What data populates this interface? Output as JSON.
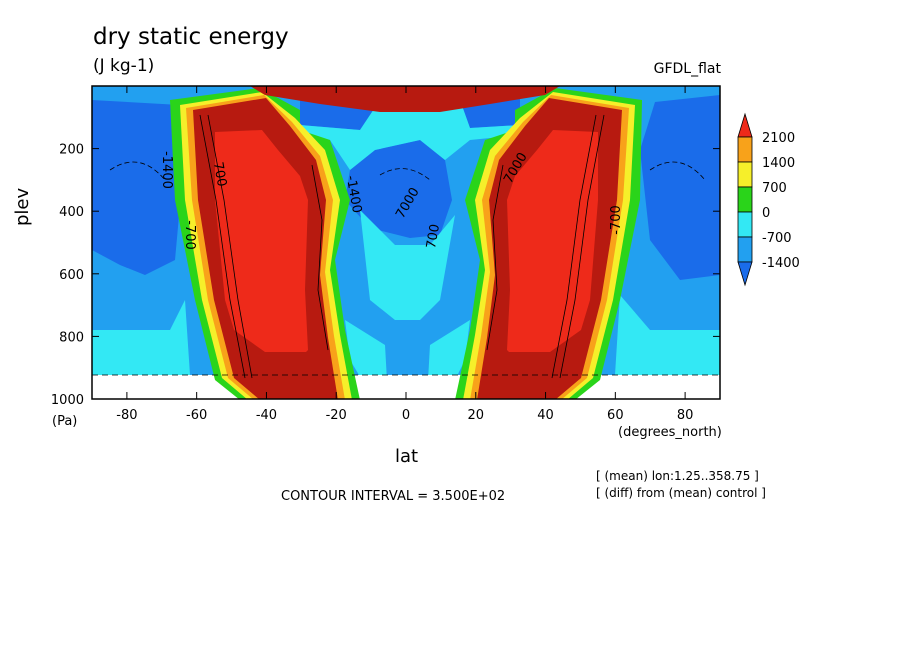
{
  "figure": {
    "title": "dry static energy",
    "units": "(J kg-1)",
    "dataset": "GFDL_flat",
    "meta_lines": [
      "[ (mean) lon:1.25..358.75 ]",
      "[ (diff) from (mean) control ]"
    ],
    "contour_interval": "CONTOUR INTERVAL = 3.500E+02"
  },
  "chart_data": {
    "type": "heatmap",
    "title": "dry static energy",
    "subtitle": "(J kg-1)",
    "xlabel": "lat",
    "ylabel": "plev",
    "x_units": "(degrees_north)",
    "y_units": "(Pa)",
    "xlim": [
      -90,
      90
    ],
    "ylim": [
      1000,
      0
    ],
    "x_ticks": [
      -80,
      -60,
      -40,
      -20,
      0,
      20,
      40,
      60,
      80
    ],
    "y_ticks": [
      200,
      400,
      600,
      800,
      1000
    ],
    "colorbar": {
      "labels": [
        "2100",
        "1400",
        "700",
        "0",
        "-700",
        "-1400"
      ],
      "colors": [
        "#ee2a1a",
        "#f8a21a",
        "#f6ef2a",
        "#2ad41a",
        "#33e8f4",
        "#22a0f0",
        "#1a6cea"
      ]
    },
    "contour_labels": [
      "-1400",
      "-700",
      "700",
      "7000",
      "-1400",
      "700",
      "7000",
      "-700"
    ]
  }
}
